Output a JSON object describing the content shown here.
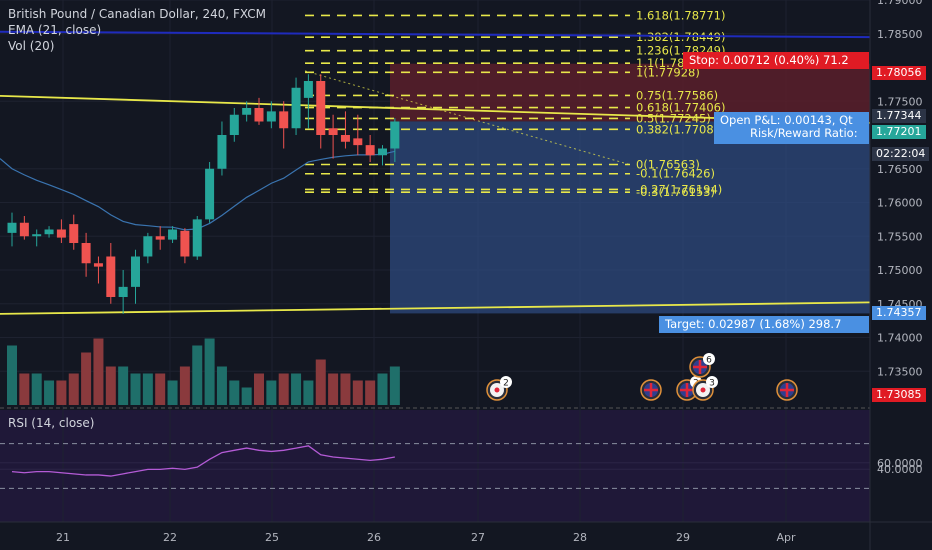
{
  "legend": {
    "title": "British Pound / Canadian Dollar, 240, FXCM",
    "ema": "EMA (21, close)",
    "vol": "Vol (20)",
    "rsi": "RSI (14, close)"
  },
  "colors": {
    "up": "#26a69a",
    "down": "#ef5350",
    "fib": "#e8e84a",
    "trendline": "#e8e84a",
    "ema": "#3a74b0",
    "blue_line": "#1f2bbd",
    "rsi": "#b45bd6",
    "target_zone": "#2e4a7d",
    "stop_zone": "#5a1f2a"
  },
  "price_axis": {
    "labels": [
      "1.79000",
      "1.78500",
      "1.77500",
      "1.76500",
      "1.76000",
      "1.75500",
      "1.75000",
      "1.74500",
      "1.74000",
      "1.73500"
    ],
    "min": 1.73,
    "max": 1.79
  },
  "rsi_axis": {
    "labels": [
      "60.0000",
      "40.0000"
    ]
  },
  "price_tags": {
    "stop_level": "1.78056",
    "entry_a": "1.77344",
    "entry_b": "1.77201",
    "countdown": "02:22:04",
    "target_level": "1.74357",
    "current_low": "1.73085"
  },
  "position": {
    "stop_label": "Stop: 0.00712 (0.40%) 71.2",
    "open_pnl_label": "Open P&L: 0.00143, Qt",
    "rr_label": "Risk/Reward Ratio:",
    "target_label": "Target: 0.02987 (1.68%) 298.7"
  },
  "fib_labels": [
    {
      "text": "1.618(1.78771)",
      "price": 1.78771
    },
    {
      "text": "1.382(1.78449)",
      "price": 1.78449
    },
    {
      "text": "1.236(1.78249)",
      "price": 1.78249
    },
    {
      "text": "1.1(1.78064)",
      "price": 1.78064
    },
    {
      "text": "1(1.77928)",
      "price": 1.77928
    },
    {
      "text": "0.75(1.77586)",
      "price": 1.77586
    },
    {
      "text": "0.618(1.77406)",
      "price": 1.77406
    },
    {
      "text": "0.5(1.77245)",
      "price": 1.77245
    },
    {
      "text": "0.382(1.77084)",
      "price": 1.77084
    },
    {
      "text": "0(1.76563)",
      "price": 1.76563
    },
    {
      "text": "-0.1(1.76426)",
      "price": 1.76426
    },
    {
      "text": "-0.27(1.76194)",
      "price": 1.76194
    },
    {
      "text": "-0.3(1.76153)",
      "price": 1.76153
    }
  ],
  "time_axis": {
    "labels": [
      "21",
      "22",
      "25",
      "26",
      "27",
      "28",
      "29",
      "Apr"
    ]
  },
  "events": [
    {
      "flag": "ca",
      "count": "2"
    },
    {
      "flag": "gb",
      "count": ""
    },
    {
      "flag": "gb",
      "count": "2"
    },
    {
      "flag": "ca",
      "count": "3"
    },
    {
      "flag": "gb",
      "count": "6"
    },
    {
      "flag": "gb",
      "count": ""
    }
  ],
  "chart_data": {
    "type": "candlestick",
    "title": "British Pound / Canadian Dollar, 240, FXCM",
    "ylim": [
      1.73,
      1.79
    ],
    "candles": [
      {
        "o": 1.7555,
        "h": 1.7585,
        "l": 1.7535,
        "c": 1.757
      },
      {
        "o": 1.757,
        "h": 1.758,
        "l": 1.7545,
        "c": 1.755
      },
      {
        "o": 1.755,
        "h": 1.756,
        "l": 1.7535,
        "c": 1.7553
      },
      {
        "o": 1.7553,
        "h": 1.7565,
        "l": 1.7548,
        "c": 1.756
      },
      {
        "o": 1.756,
        "h": 1.7575,
        "l": 1.754,
        "c": 1.7548
      },
      {
        "o": 1.7568,
        "h": 1.7582,
        "l": 1.753,
        "c": 1.754
      },
      {
        "o": 1.754,
        "h": 1.7555,
        "l": 1.749,
        "c": 1.751
      },
      {
        "o": 1.751,
        "h": 1.752,
        "l": 1.748,
        "c": 1.7505
      },
      {
        "o": 1.752,
        "h": 1.754,
        "l": 1.745,
        "c": 1.746
      },
      {
        "o": 1.746,
        "h": 1.75,
        "l": 1.7435,
        "c": 1.7475
      },
      {
        "o": 1.7475,
        "h": 1.753,
        "l": 1.745,
        "c": 1.752
      },
      {
        "o": 1.752,
        "h": 1.7555,
        "l": 1.751,
        "c": 1.755
      },
      {
        "o": 1.755,
        "h": 1.7565,
        "l": 1.753,
        "c": 1.7545
      },
      {
        "o": 1.7545,
        "h": 1.7565,
        "l": 1.754,
        "c": 1.756
      },
      {
        "o": 1.7558,
        "h": 1.7562,
        "l": 1.751,
        "c": 1.752
      },
      {
        "o": 1.752,
        "h": 1.758,
        "l": 1.7515,
        "c": 1.7575
      },
      {
        "o": 1.7575,
        "h": 1.766,
        "l": 1.757,
        "c": 1.765
      },
      {
        "o": 1.765,
        "h": 1.772,
        "l": 1.764,
        "c": 1.77
      },
      {
        "o": 1.77,
        "h": 1.774,
        "l": 1.769,
        "c": 1.773
      },
      {
        "o": 1.773,
        "h": 1.775,
        "l": 1.772,
        "c": 1.774
      },
      {
        "o": 1.774,
        "h": 1.7755,
        "l": 1.7715,
        "c": 1.772
      },
      {
        "o": 1.772,
        "h": 1.775,
        "l": 1.771,
        "c": 1.7735
      },
      {
        "o": 1.7735,
        "h": 1.775,
        "l": 1.768,
        "c": 1.771
      },
      {
        "o": 1.771,
        "h": 1.7785,
        "l": 1.77,
        "c": 1.777
      },
      {
        "o": 1.7755,
        "h": 1.779,
        "l": 1.771,
        "c": 1.778
      },
      {
        "o": 1.778,
        "h": 1.779,
        "l": 1.768,
        "c": 1.77
      },
      {
        "o": 1.771,
        "h": 1.773,
        "l": 1.7665,
        "c": 1.77
      },
      {
        "o": 1.77,
        "h": 1.7735,
        "l": 1.768,
        "c": 1.769
      },
      {
        "o": 1.7695,
        "h": 1.773,
        "l": 1.767,
        "c": 1.7685
      },
      {
        "o": 1.7685,
        "h": 1.77,
        "l": 1.766,
        "c": 1.767
      },
      {
        "o": 1.767,
        "h": 1.7685,
        "l": 1.7655,
        "c": 1.768
      },
      {
        "o": 1.768,
        "h": 1.7725,
        "l": 1.766,
        "c": 1.772
      }
    ],
    "volume": [
      0.85,
      0.45,
      0.45,
      0.35,
      0.35,
      0.45,
      0.75,
      0.95,
      0.55,
      0.55,
      0.45,
      0.45,
      0.45,
      0.35,
      0.55,
      0.85,
      0.95,
      0.55,
      0.35,
      0.25,
      0.45,
      0.35,
      0.45,
      0.45,
      0.35,
      0.65,
      0.45,
      0.45,
      0.35,
      0.35,
      0.45,
      0.55
    ],
    "rsi": [
      45,
      44,
      45,
      45,
      44,
      43,
      42,
      42,
      41,
      43,
      45,
      47,
      47,
      48,
      47,
      49,
      56,
      62,
      64,
      66,
      64,
      63,
      64,
      66,
      68,
      60,
      58,
      57,
      56,
      55,
      56,
      58
    ]
  }
}
